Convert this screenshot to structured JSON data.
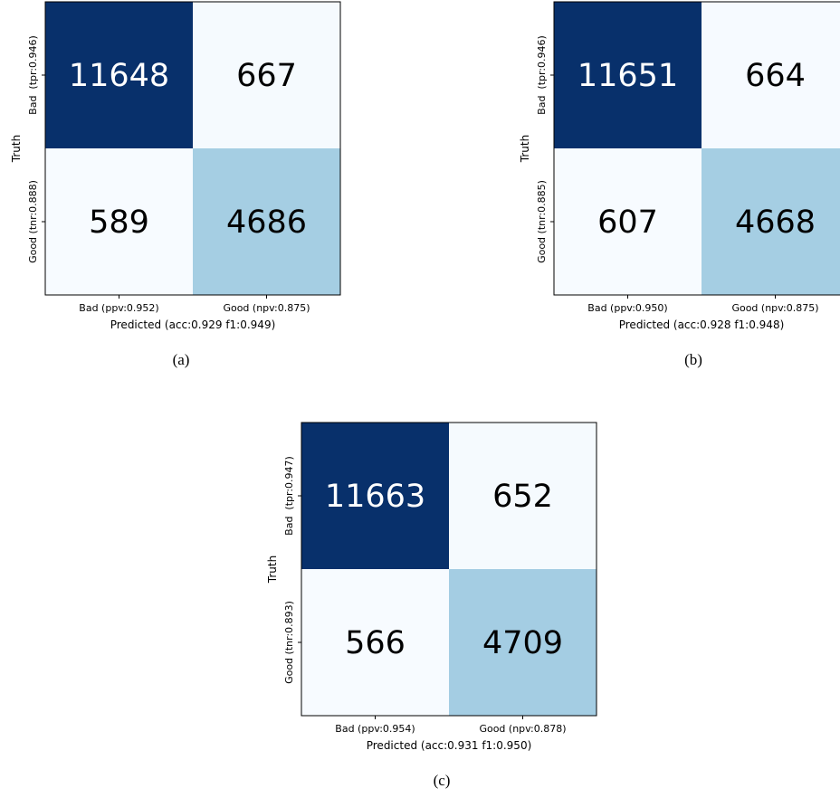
{
  "colors": {
    "high": "#08306b",
    "mid": "#9ecae1",
    "low": "#f7fbff",
    "dark_text": "#000000",
    "light_text": "#ffffff"
  },
  "chart_data": [
    {
      "type": "heatmap",
      "caption": "(a)",
      "rows": [
        "Bad  (tpr:0.946)",
        "Good (tnr:0.888)"
      ],
      "columns": [
        "Bad (ppv:0.952)",
        "Good (npv:0.875)"
      ],
      "values": [
        [
          11648,
          667
        ],
        [
          589,
          4686
        ]
      ],
      "ylabel": "Truth",
      "xlabel": "Predicted (acc:0.929 f1:0.949)"
    },
    {
      "type": "heatmap",
      "caption": "(b)",
      "rows": [
        "Bad  (tpr:0.946)",
        "Good (tnr:0.885)"
      ],
      "columns": [
        "Bad (ppv:0.950)",
        "Good (npv:0.875)"
      ],
      "values": [
        [
          11651,
          664
        ],
        [
          607,
          4668
        ]
      ],
      "ylabel": "Truth",
      "xlabel": "Predicted (acc:0.928 f1:0.948)"
    },
    {
      "type": "heatmap",
      "caption": "(c)",
      "rows": [
        "Bad  (tpr:0.947)",
        "Good (tnr:0.893)"
      ],
      "columns": [
        "Bad (ppv:0.954)",
        "Good (npv:0.878)"
      ],
      "values": [
        [
          11663,
          652
        ],
        [
          566,
          4709
        ]
      ],
      "ylabel": "Truth",
      "xlabel": "Predicted (acc:0.931 f1:0.950)"
    }
  ]
}
